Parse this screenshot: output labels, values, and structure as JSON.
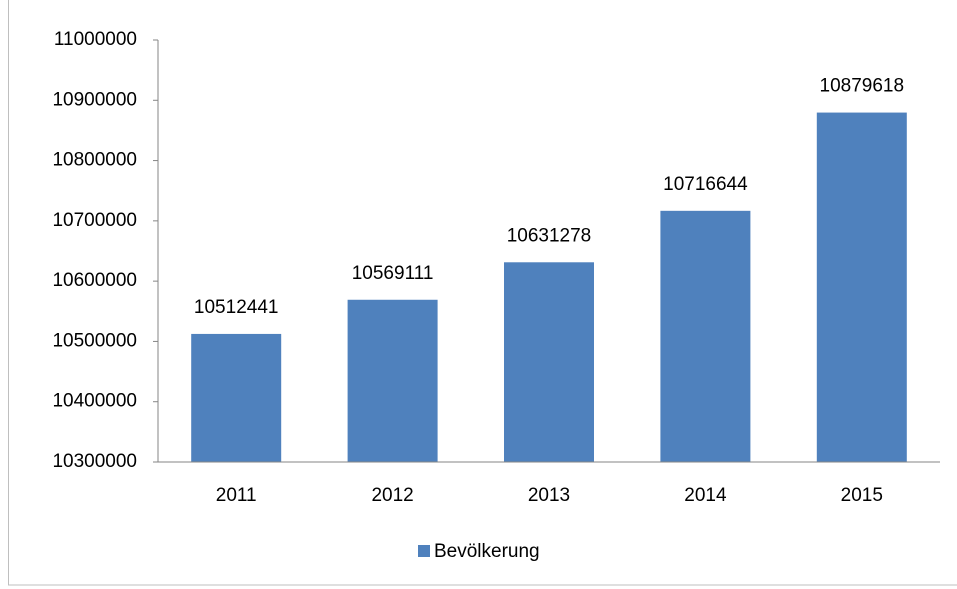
{
  "chart_data": {
    "type": "bar",
    "categories": [
      "2011",
      "2012",
      "2013",
      "2014",
      "2015"
    ],
    "series": [
      {
        "name": "Bevölkerung",
        "color": "#4f81bd",
        "values": [
          10512441,
          10569111,
          10631278,
          10716644,
          10879618
        ]
      }
    ],
    "ylim": [
      10300000,
      11000000
    ],
    "yticks": [
      10300000,
      10400000,
      10500000,
      10600000,
      10700000,
      10800000,
      10900000,
      11000000
    ],
    "grid": false,
    "data_labels": true,
    "legend": "bottom"
  }
}
